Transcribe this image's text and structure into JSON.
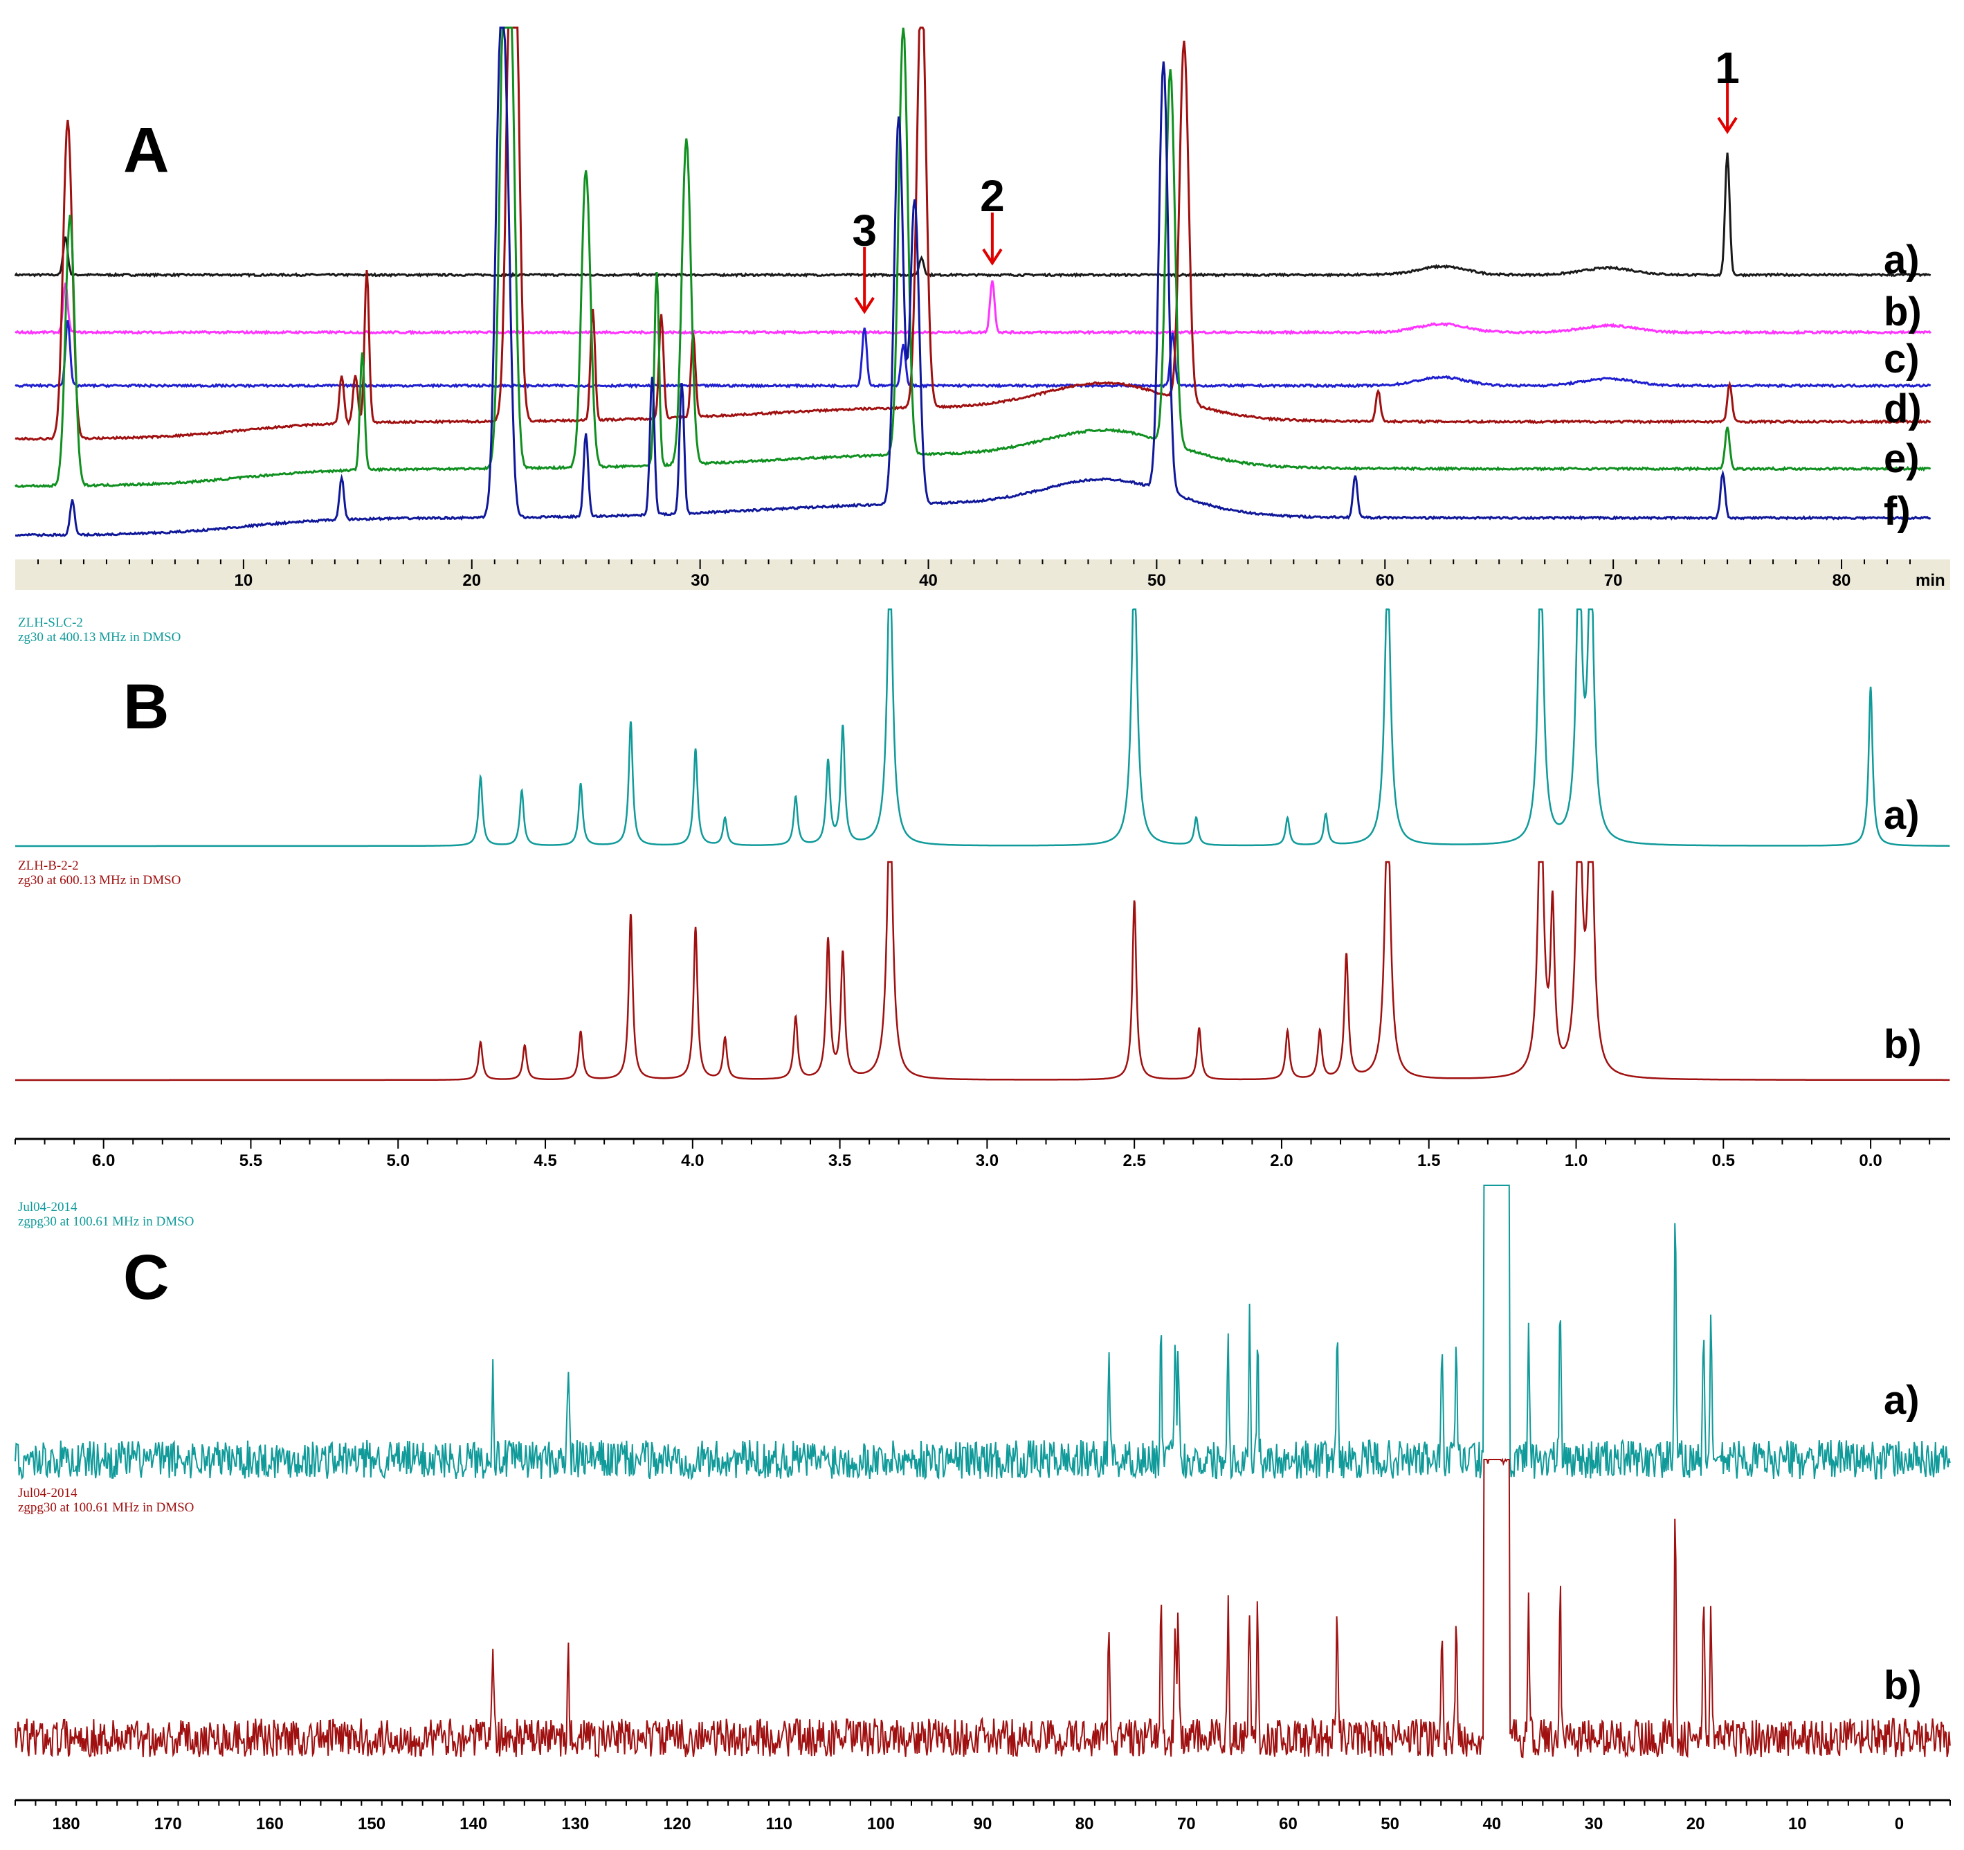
{
  "colors": {
    "black": "#1a1a1a",
    "magenta": "#ff33ff",
    "blue": "#1f1fd0",
    "darkred": "#a01010",
    "green": "#109020",
    "navy": "#10189a",
    "teal": "#109a9a",
    "arrow": "#e00000",
    "axis_band": "#ece9d8"
  },
  "panels": {
    "A": {
      "letter": "A",
      "trace_labels": [
        "a)",
        "b)",
        "c)",
        "d)",
        "e)",
        "f)"
      ],
      "axis_unit": "min",
      "peak_markers": [
        {
          "label": "1",
          "time": 75.0
        },
        {
          "label": "2",
          "time": 42.8
        },
        {
          "label": "3",
          "time": 37.2
        }
      ]
    },
    "B": {
      "letter": "B",
      "trace_labels": [
        "a)",
        "b)"
      ],
      "header_a": [
        "ZLH-SLC-2",
        "zg30 at 400.13 MHz in DMSO"
      ],
      "header_b": [
        "ZLH-B-2-2",
        "zg30 at 600.13 MHz in DMSO"
      ]
    },
    "C": {
      "letter": "C",
      "trace_labels": [
        "a)",
        "b)"
      ],
      "header_a": [
        "Jul04-2014",
        "zgpg30 at 100.61 MHz in DMSO"
      ],
      "header_b": [
        "Jul04-2014",
        "zgpg30 at 100.61 MHz in DMSO"
      ]
    }
  },
  "chart_data": [
    {
      "type": "line",
      "panel": "A",
      "xlabel": "min",
      "xlim": [
        0,
        83
      ],
      "xticks": [
        10,
        20,
        30,
        40,
        50,
        60,
        70,
        80
      ],
      "series": [
        {
          "name": "a)",
          "color": "black",
          "peaks": [
            [
              2.2,
              55
            ],
            [
              39.7,
              25
            ],
            [
              75.0,
              175
            ]
          ]
        },
        {
          "name": "b)",
          "color": "magenta",
          "peaks": [
            [
              2.2,
              70
            ],
            [
              42.8,
              75
            ]
          ]
        },
        {
          "name": "c)",
          "color": "blue",
          "peaks": [
            [
              2.3,
              95
            ],
            [
              37.2,
              85
            ],
            [
              38.9,
              60
            ],
            [
              50.7,
              75
            ]
          ]
        },
        {
          "name": "d)",
          "color": "darkred",
          "peaks": [
            [
              2.3,
              460
            ],
            [
              14.3,
              70
            ],
            [
              14.9,
              70
            ],
            [
              15.4,
              220
            ],
            [
              21.7,
              530
            ],
            [
              21.9,
              500
            ],
            [
              25.3,
              160
            ],
            [
              28.3,
              150
            ],
            [
              29.7,
              120
            ],
            [
              39.7,
              620
            ],
            [
              51.2,
              520
            ],
            [
              59.7,
              45
            ],
            [
              75.1,
              55
            ]
          ]
        },
        {
          "name": "e)",
          "color": "green",
          "peaks": [
            [
              2.4,
              390
            ],
            [
              15.2,
              170
            ],
            [
              21.4,
              590
            ],
            [
              21.7,
              570
            ],
            [
              25.0,
              430
            ],
            [
              28.1,
              280
            ],
            [
              29.4,
              470
            ],
            [
              38.9,
              620
            ],
            [
              50.6,
              540
            ],
            [
              75.0,
              60
            ]
          ]
        },
        {
          "name": "f)",
          "color": "navy",
          "peaks": [
            [
              2.5,
              50
            ],
            [
              14.3,
              60
            ],
            [
              21.2,
              520
            ],
            [
              21.5,
              470
            ],
            [
              25.0,
              120
            ],
            [
              27.9,
              200
            ],
            [
              29.2,
              190
            ],
            [
              38.7,
              560
            ],
            [
              39.4,
              440
            ],
            [
              50.3,
              620
            ],
            [
              58.7,
              60
            ],
            [
              74.8,
              65
            ]
          ]
        }
      ]
    },
    {
      "type": "line",
      "panel": "B",
      "xlabel": "",
      "xlim": [
        6.3,
        -0.27
      ],
      "xticks": [
        6.0,
        5.5,
        5.0,
        4.5,
        4.0,
        3.5,
        3.0,
        2.5,
        2.0,
        1.5,
        1.0,
        0.5,
        0.0
      ],
      "tick_labels": [
        "6.0",
        "5.5",
        "5.0",
        "4.5",
        "4.0",
        "3.5",
        "3.0",
        "2.5",
        "2.0",
        "1.5",
        "1.0",
        "0.5",
        "0.0"
      ],
      "series": [
        {
          "name": "a)",
          "color": "teal",
          "peaks": [
            [
              4.72,
              100
            ],
            [
              4.58,
              80
            ],
            [
              4.38,
              90
            ],
            [
              4.21,
              180
            ],
            [
              3.99,
              140
            ],
            [
              3.89,
              40
            ],
            [
              3.65,
              70
            ],
            [
              3.54,
              120
            ],
            [
              3.49,
              170
            ],
            [
              3.33,
              400
            ],
            [
              2.5,
              400
            ],
            [
              2.29,
              40
            ],
            [
              1.98,
              40
            ],
            [
              1.85,
              45
            ],
            [
              1.64,
              400
            ],
            [
              1.12,
              400
            ],
            [
              0.99,
              400
            ],
            [
              0.95,
              400
            ],
            [
              0.0,
              230
            ]
          ]
        },
        {
          "name": "b)",
          "color": "darkred",
          "peaks": [
            [
              4.72,
              55
            ],
            [
              4.57,
              50
            ],
            [
              4.38,
              70
            ],
            [
              4.21,
              240
            ],
            [
              3.99,
              220
            ],
            [
              3.89,
              60
            ],
            [
              3.65,
              90
            ],
            [
              3.54,
              200
            ],
            [
              3.49,
              180
            ],
            [
              3.33,
              400
            ],
            [
              2.5,
              260
            ],
            [
              2.28,
              75
            ],
            [
              1.98,
              70
            ],
            [
              1.87,
              70
            ],
            [
              1.78,
              180
            ],
            [
              1.64,
              400
            ],
            [
              1.12,
              400
            ],
            [
              1.08,
              230
            ],
            [
              0.99,
              400
            ],
            [
              0.95,
              400
            ]
          ]
        }
      ]
    },
    {
      "type": "line",
      "panel": "C",
      "xlabel": "",
      "xlim": [
        185,
        -5
      ],
      "xticks": [
        180,
        170,
        160,
        150,
        140,
        130,
        120,
        110,
        100,
        90,
        80,
        70,
        60,
        50,
        40,
        30,
        20,
        10,
        0
      ],
      "series": [
        {
          "name": "a)",
          "color": "teal",
          "peaks": [
            [
              138.1,
              150
            ],
            [
              130.7,
              145
            ],
            [
              77.6,
              170
            ],
            [
              72.5,
              190
            ],
            [
              71.1,
              170
            ],
            [
              70.8,
              170
            ],
            [
              65.9,
              200
            ],
            [
              63.8,
              200
            ],
            [
              63.0,
              190
            ],
            [
              55.2,
              190
            ],
            [
              44.9,
              150
            ],
            [
              43.5,
              150
            ],
            [
              36.4,
              200
            ],
            [
              33.3,
              230
            ],
            [
              22.0,
              360
            ],
            [
              19.2,
              200
            ],
            [
              18.5,
              200
            ]
          ]
        },
        {
          "name": "b)",
          "color": "darkred",
          "peaks": [
            [
              138.1,
              150
            ],
            [
              130.7,
              145
            ],
            [
              77.6,
              170
            ],
            [
              72.5,
              190
            ],
            [
              71.1,
              170
            ],
            [
              70.8,
              170
            ],
            [
              65.9,
              200
            ],
            [
              63.8,
              200
            ],
            [
              63.0,
              190
            ],
            [
              55.2,
              190
            ],
            [
              44.9,
              150
            ],
            [
              43.5,
              150
            ],
            [
              36.4,
              200
            ],
            [
              33.3,
              230
            ],
            [
              22.0,
              360
            ],
            [
              19.2,
              200
            ],
            [
              18.5,
              200
            ]
          ]
        }
      ]
    }
  ]
}
